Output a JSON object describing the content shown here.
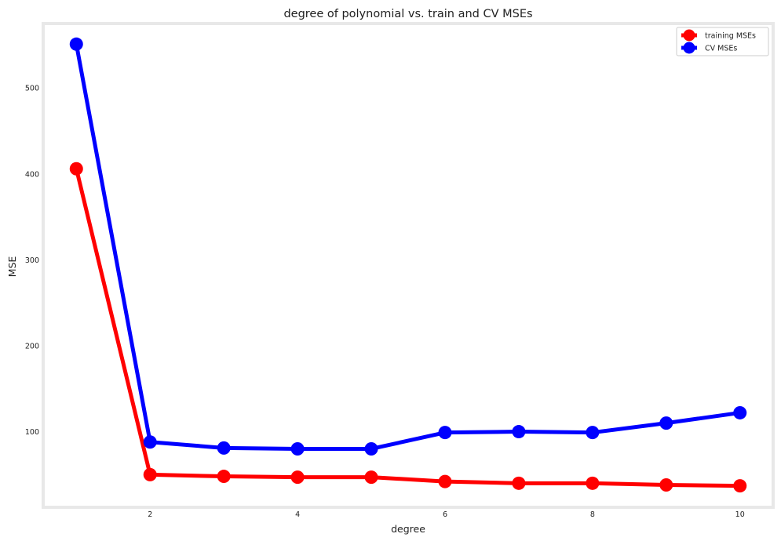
{
  "chart_data": {
    "type": "line",
    "title": "degree of polynomial vs. train and CV MSEs",
    "xlabel": "degree",
    "ylabel": "MSE",
    "x": [
      1,
      2,
      3,
      4,
      5,
      6,
      7,
      8,
      9,
      10
    ],
    "xlim": [
      0.55,
      10.45
    ],
    "ylim": [
      12,
      575
    ],
    "xticks": [
      2,
      4,
      6,
      8,
      10
    ],
    "yticks": [
      100,
      200,
      300,
      400,
      500
    ],
    "grid": false,
    "legend_position": "top-right",
    "series": [
      {
        "name": "training MSEs",
        "color": "#ff0000",
        "values": [
          406,
          50,
          48,
          47,
          47,
          42,
          40,
          40,
          38,
          37
        ]
      },
      {
        "name": "CV MSEs",
        "color": "#0000ff",
        "values": [
          551,
          88,
          81,
          80,
          80,
          99,
          100,
          99,
          110,
          122
        ]
      }
    ]
  }
}
